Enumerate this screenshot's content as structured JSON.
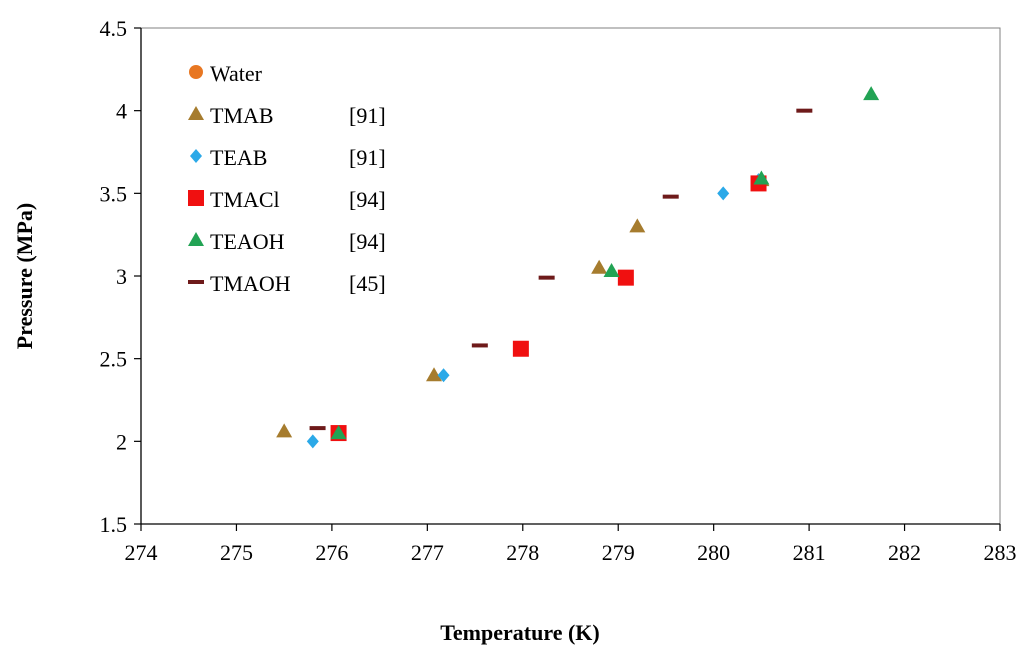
{
  "chart_data": {
    "type": "scatter",
    "xlabel": "Temperature  (K)",
    "ylabel": "Pressure (MPa)",
    "xlim": [
      274,
      283
    ],
    "ylim": [
      1.5,
      4.5
    ],
    "xticks": [
      "274",
      "275",
      "276",
      "277",
      "278",
      "279",
      "280",
      "281",
      "282",
      "283"
    ],
    "yticks": [
      "1.5",
      "2",
      "2.5",
      "3",
      "3.5",
      "4",
      "4.5"
    ],
    "grid": false,
    "legend_position": "top-left",
    "series": [
      {
        "name": "Water",
        "ref": "",
        "marker": "circle",
        "color": "#E87722",
        "points": []
      },
      {
        "name": "TMAB",
        "ref": "[91]",
        "marker": "triangle",
        "color": "#A67C2E",
        "points": [
          [
            275.5,
            2.06
          ],
          [
            277.07,
            2.4
          ],
          [
            278.8,
            3.05
          ],
          [
            279.2,
            3.3
          ],
          [
            280.5,
            3.58
          ]
        ]
      },
      {
        "name": "TEAB",
        "ref": "[91]",
        "marker": "diamond",
        "color": "#2BA9E8",
        "points": [
          [
            275.8,
            2.0
          ],
          [
            277.17,
            2.4
          ],
          [
            280.1,
            3.5
          ],
          [
            280.47,
            3.58
          ]
        ]
      },
      {
        "name": "TMACl",
        "ref": "[94]",
        "marker": "square",
        "color": "#F01010",
        "points": [
          [
            276.07,
            2.05
          ],
          [
            277.98,
            2.56
          ],
          [
            279.08,
            2.99
          ],
          [
            280.47,
            3.56
          ]
        ]
      },
      {
        "name": "TEAOH",
        "ref": "[94]",
        "marker": "triangle",
        "color": "#22A354",
        "points": [
          [
            276.07,
            2.05
          ],
          [
            278.93,
            3.03
          ],
          [
            280.5,
            3.59
          ],
          [
            281.65,
            4.1
          ]
        ]
      },
      {
        "name": "TMAOH",
        "ref": "[45]",
        "marker": "dash",
        "color": "#6E1A1A",
        "points": [
          [
            275.85,
            2.08
          ],
          [
            277.55,
            2.58
          ],
          [
            278.25,
            2.99
          ],
          [
            279.55,
            3.48
          ],
          [
            280.95,
            4.0
          ]
        ]
      }
    ]
  }
}
